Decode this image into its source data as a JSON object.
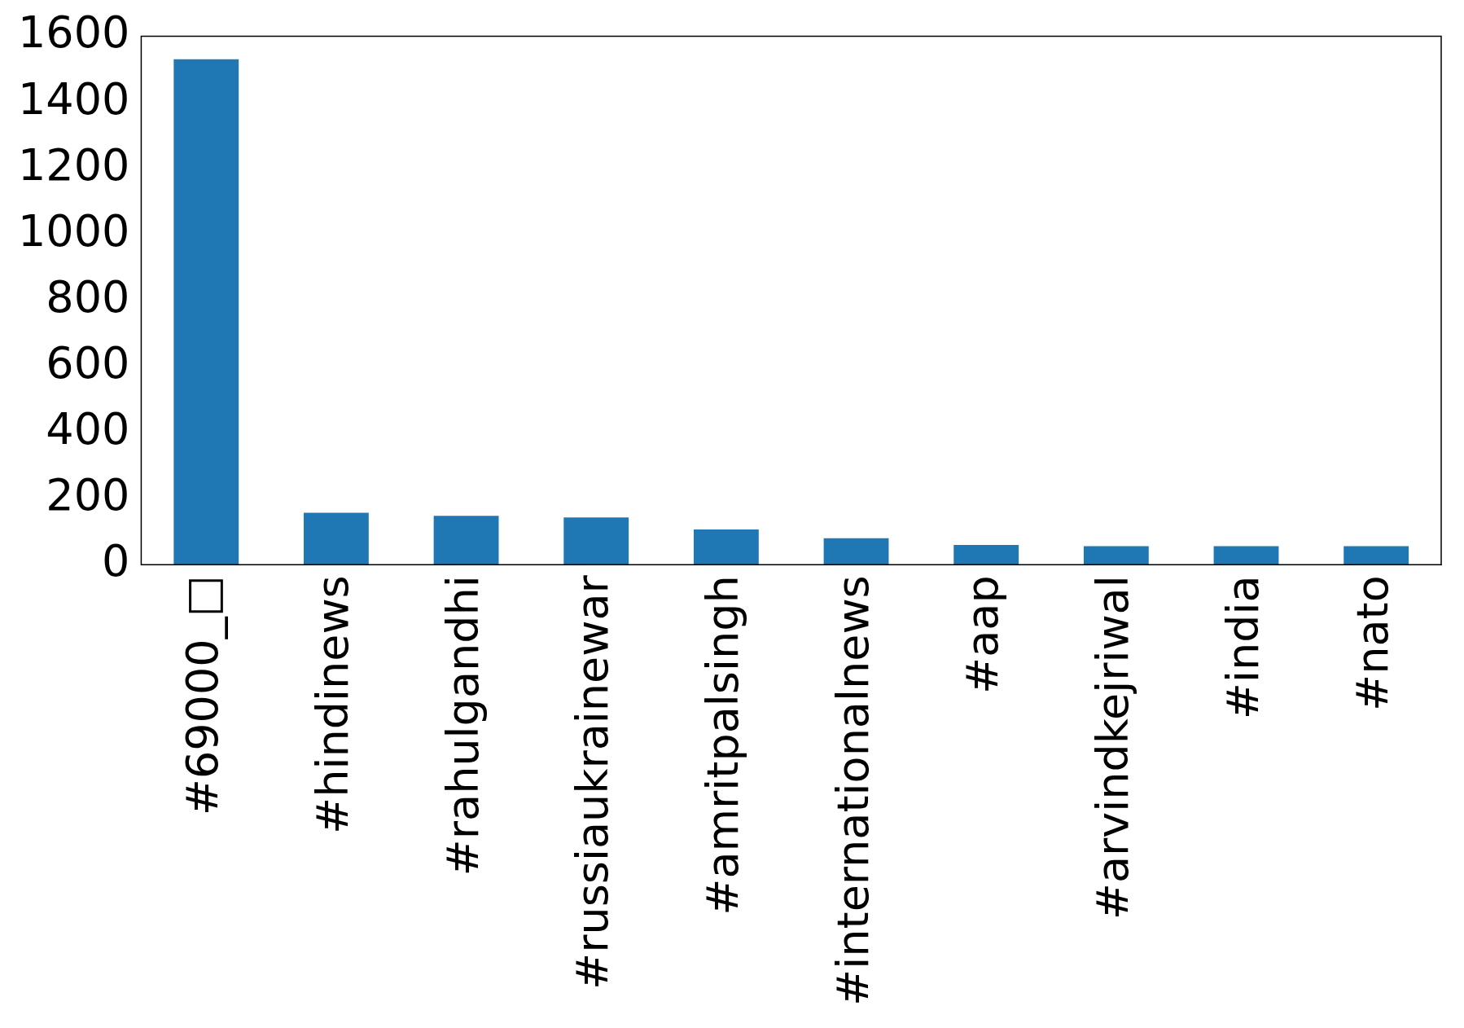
{
  "chart_data": {
    "type": "bar",
    "categories": [
      "#69000_□",
      "#hindinews",
      "#rahulgandhi",
      "#russiaukrainewar",
      "#amritpalsingh",
      "#internationalnews",
      "#aap",
      "#arvindkejriwal",
      "#india",
      "#nato"
    ],
    "values": [
      1530,
      157,
      148,
      143,
      107,
      80,
      60,
      56,
      56,
      56
    ],
    "color": "#1f77b4",
    "ylim": [
      0,
      1600
    ],
    "yticks": [
      0,
      200,
      400,
      600,
      800,
      1000,
      1200,
      1400,
      1600
    ],
    "grid": false,
    "legend": false
  }
}
